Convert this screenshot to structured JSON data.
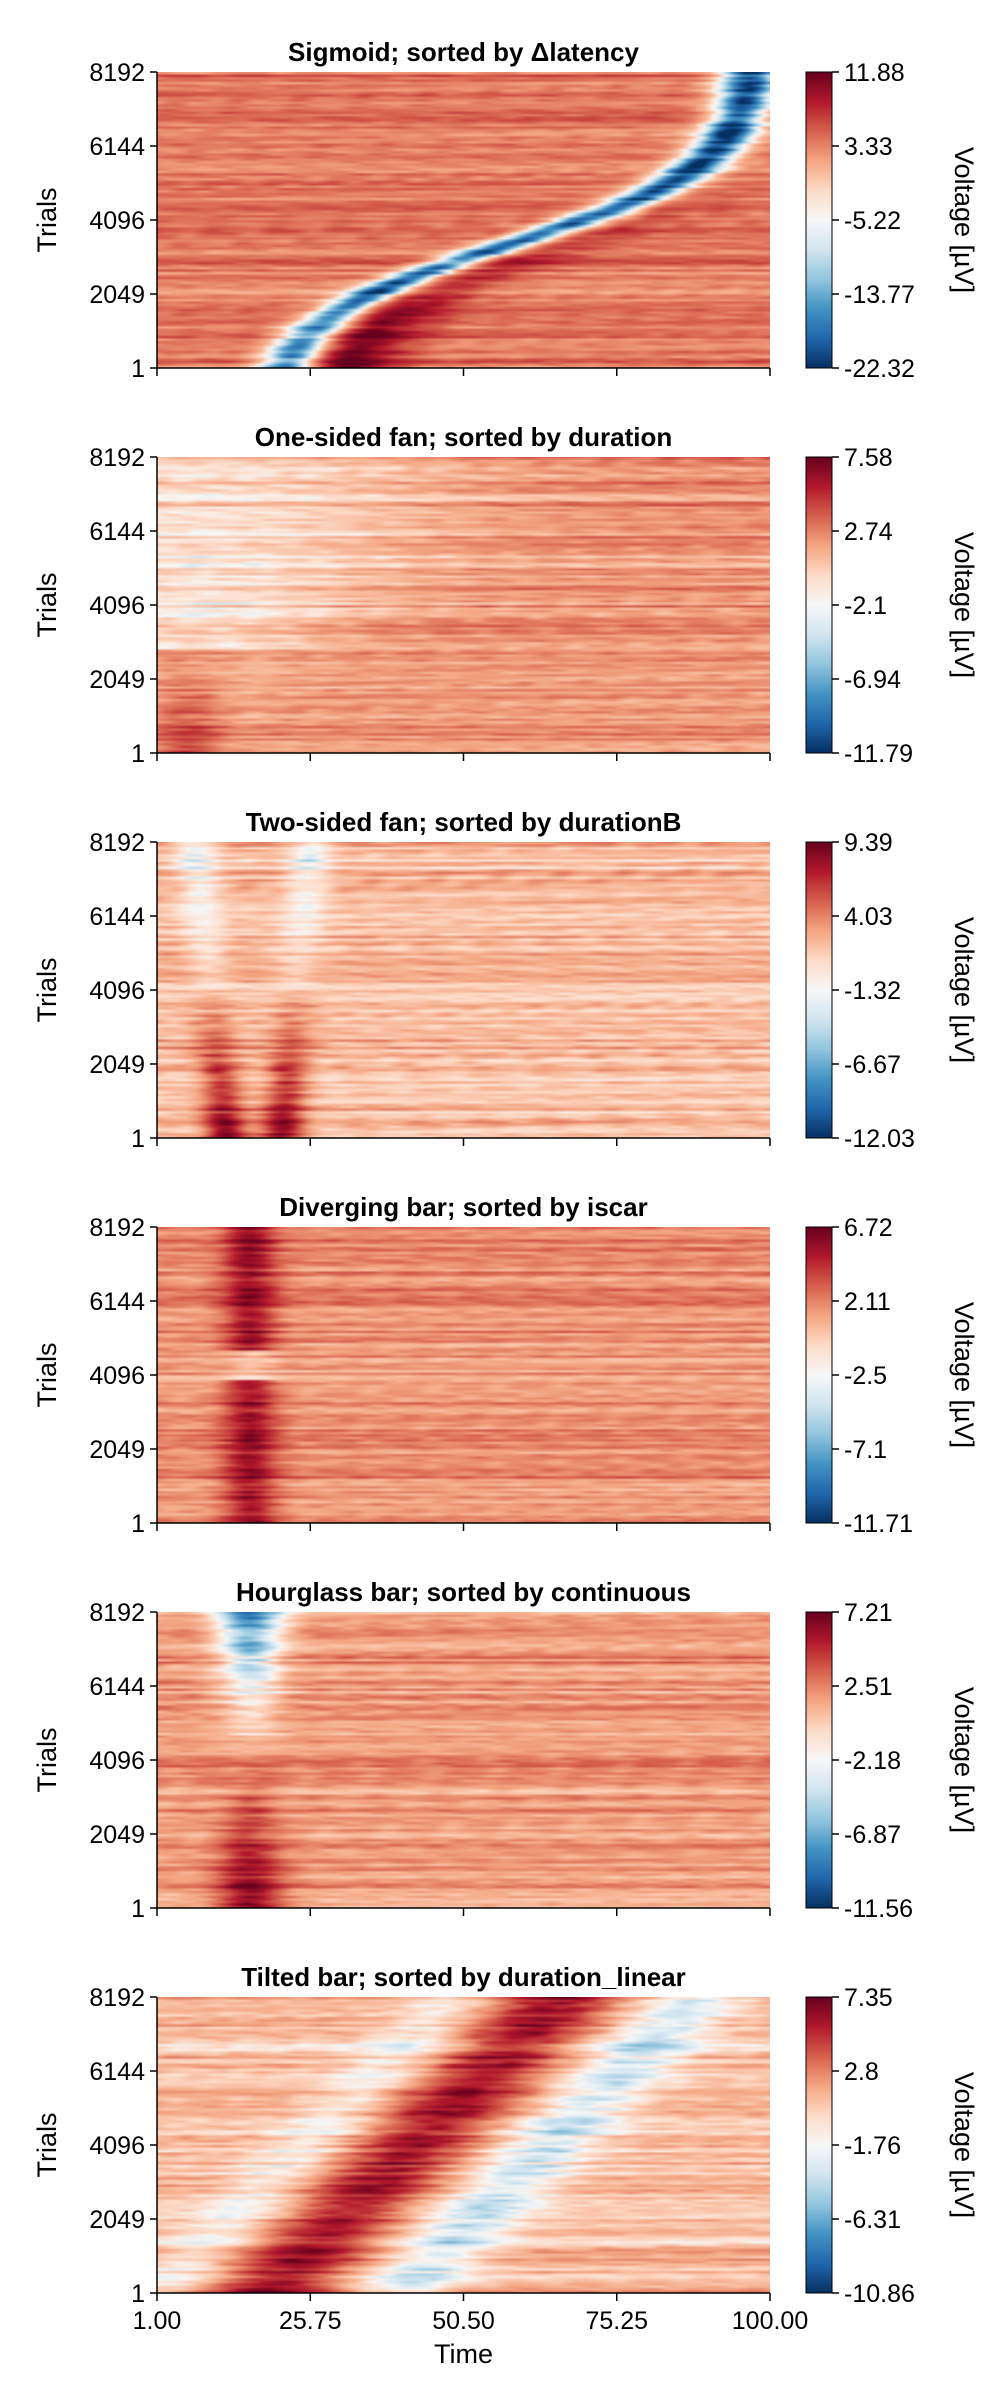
{
  "shared": {
    "ylabel": "Trials",
    "xlabel": "Time",
    "colorbar_label": "Voltage [µV]",
    "y_ticks": [
      "1",
      "2049",
      "4096",
      "6144",
      "8192"
    ],
    "y_tick_values": [
      1,
      2049,
      4096,
      6144,
      8192
    ],
    "x_ticks": [
      "1.00",
      "25.75",
      "50.50",
      "75.25",
      "100.00"
    ],
    "x_tick_values": [
      1.0,
      25.75,
      50.5,
      75.25,
      100.0
    ],
    "colormap": [
      "#053061",
      "#2166ac",
      "#4393c3",
      "#92c5de",
      "#d1e5f0",
      "#f7f7f7",
      "#fddbc7",
      "#f4a582",
      "#d6604d",
      "#b2182b",
      "#67001f"
    ]
  },
  "chart_data": [
    {
      "type": "heatmap",
      "title": "Sigmoid; sorted by Δlatency",
      "pattern": "sigmoid",
      "xlabel": "",
      "ylabel": "Trials",
      "xlim": [
        1,
        100
      ],
      "ylim": [
        1,
        8192
      ],
      "clim": [
        -22.32,
        11.88
      ],
      "colorbar_ticks": [
        "11.88",
        "3.33",
        "-5.22",
        "-13.77",
        "-22.32"
      ]
    },
    {
      "type": "heatmap",
      "title": "One-sided fan; sorted by duration",
      "pattern": "onefan",
      "xlabel": "",
      "ylabel": "Trials",
      "xlim": [
        1,
        100
      ],
      "ylim": [
        1,
        8192
      ],
      "clim": [
        -11.79,
        7.58
      ],
      "colorbar_ticks": [
        "7.58",
        "2.74",
        "-2.1",
        "-6.94",
        "-11.79"
      ]
    },
    {
      "type": "heatmap",
      "title": "Two-sided fan; sorted by durationB",
      "pattern": "twofan",
      "xlabel": "",
      "ylabel": "Trials",
      "xlim": [
        1,
        100
      ],
      "ylim": [
        1,
        8192
      ],
      "clim": [
        -12.03,
        9.39
      ],
      "colorbar_ticks": [
        "9.39",
        "4.03",
        "-1.32",
        "-6.67",
        "-12.03"
      ]
    },
    {
      "type": "heatmap",
      "title": "Diverging bar; sorted by iscar",
      "pattern": "divbar",
      "xlabel": "",
      "ylabel": "Trials",
      "xlim": [
        1,
        100
      ],
      "ylim": [
        1,
        8192
      ],
      "clim": [
        -11.71,
        6.72
      ],
      "colorbar_ticks": [
        "6.72",
        "2.11",
        "-2.5",
        "-7.1",
        "-11.71"
      ]
    },
    {
      "type": "heatmap",
      "title": "Hourglass bar; sorted by continuous",
      "pattern": "hourglass",
      "xlabel": "",
      "ylabel": "Trials",
      "xlim": [
        1,
        100
      ],
      "ylim": [
        1,
        8192
      ],
      "clim": [
        -11.56,
        7.21
      ],
      "colorbar_ticks": [
        "7.21",
        "2.51",
        "-2.18",
        "-6.87",
        "-11.56"
      ]
    },
    {
      "type": "heatmap",
      "title": "Tilted bar; sorted by duration_linear",
      "pattern": "tilted",
      "xlabel": "Time",
      "ylabel": "Trials",
      "xlim": [
        1,
        100
      ],
      "ylim": [
        1,
        8192
      ],
      "clim": [
        -10.86,
        7.35
      ],
      "colorbar_ticks": [
        "7.35",
        "2.8",
        "-1.76",
        "-6.31",
        "-10.86"
      ]
    }
  ]
}
